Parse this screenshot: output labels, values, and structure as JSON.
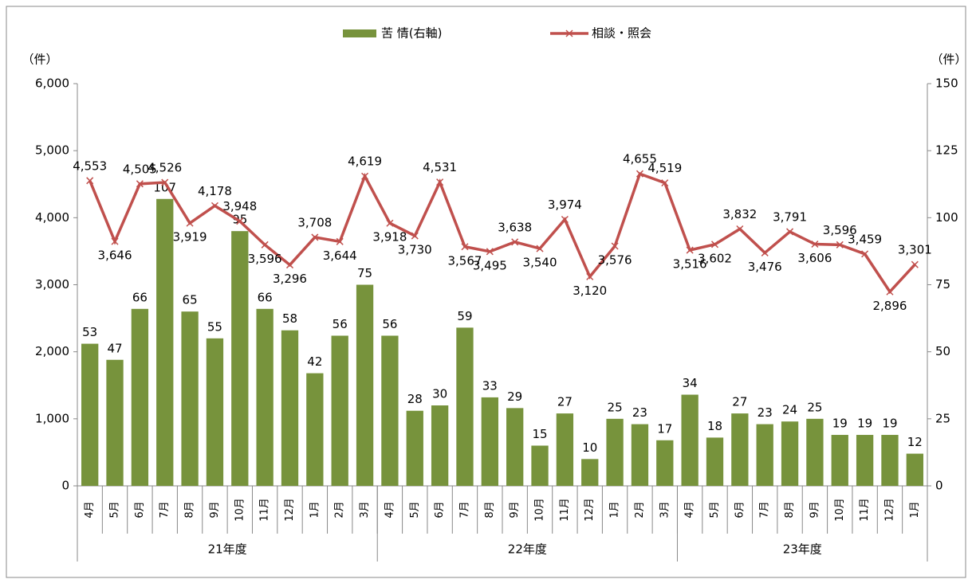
{
  "chart_data": {
    "type": "bar-line",
    "y_label": "（件）",
    "y2_label": "（件）",
    "groups": [
      {
        "name": "21年度",
        "months": [
          "4月",
          "5月",
          "6月",
          "7月",
          "8月",
          "9月",
          "10月",
          "11月",
          "12月",
          "1月",
          "2月",
          "3月"
        ]
      },
      {
        "name": "22年度",
        "months": [
          "4月",
          "5月",
          "6月",
          "7月",
          "8月",
          "9月",
          "10月",
          "11月",
          "12月",
          "1月",
          "2月",
          "3月"
        ]
      },
      {
        "name": "23年度",
        "months": [
          "4月",
          "5月",
          "6月",
          "7月",
          "8月",
          "9月",
          "10月",
          "11月",
          "12月",
          "1月"
        ]
      }
    ],
    "series": [
      {
        "name": "苦 情(右軸)",
        "type": "bar",
        "axis": "y2",
        "color": "#77933c",
        "values": [
          53,
          47,
          66,
          107,
          65,
          55,
          95,
          66,
          58,
          42,
          56,
          75,
          56,
          28,
          30,
          59,
          33,
          29,
          15,
          27,
          10,
          25,
          23,
          17,
          34,
          18,
          27,
          23,
          24,
          25,
          19,
          19,
          19,
          12
        ]
      },
      {
        "name": "相談・照会",
        "type": "line",
        "axis": "y",
        "color": "#c0504d",
        "values": [
          4553,
          3646,
          4505,
          4526,
          3919,
          4178,
          3948,
          3596,
          3296,
          3708,
          3644,
          4619,
          3918,
          3730,
          4531,
          3567,
          3495,
          3638,
          3540,
          3974,
          3120,
          3576,
          4655,
          4519,
          3516,
          3602,
          3832,
          3476,
          3791,
          3606,
          3596,
          3459,
          2896,
          3301
        ],
        "value_labels": [
          "4,553",
          "3,646",
          "4,505",
          "4,526",
          "3,919",
          "4,178",
          "3,948",
          "3,596",
          "3,296",
          "3,708",
          "3,644",
          "4,619",
          "3,918",
          "3,730",
          "4,531",
          "3,567",
          "3,495",
          "3,638",
          "3,540",
          "3,974",
          "3,120",
          "3,576",
          "4,655",
          "4,519",
          "3,516",
          "3,602",
          "3,832",
          "3,476",
          "3,791",
          "3,606",
          "3,596",
          "3,459",
          "2,896",
          "3,301"
        ]
      }
    ],
    "ylim": [
      0,
      6000
    ],
    "yticks": [
      0,
      {
        "value": 1000,
        "label": "1,000"
      },
      {
        "value": 2000,
        "label": "2,000"
      },
      {
        "value": 3000,
        "label": "3,000"
      },
      {
        "value": 4000,
        "label": "4,000"
      },
      {
        "value": 5000,
        "label": "5,000"
      },
      {
        "value": 6000,
        "label": "6,000"
      }
    ],
    "y2lim": [
      0,
      150
    ],
    "y2ticks": [
      0,
      25,
      50,
      75,
      100,
      125,
      150
    ]
  }
}
